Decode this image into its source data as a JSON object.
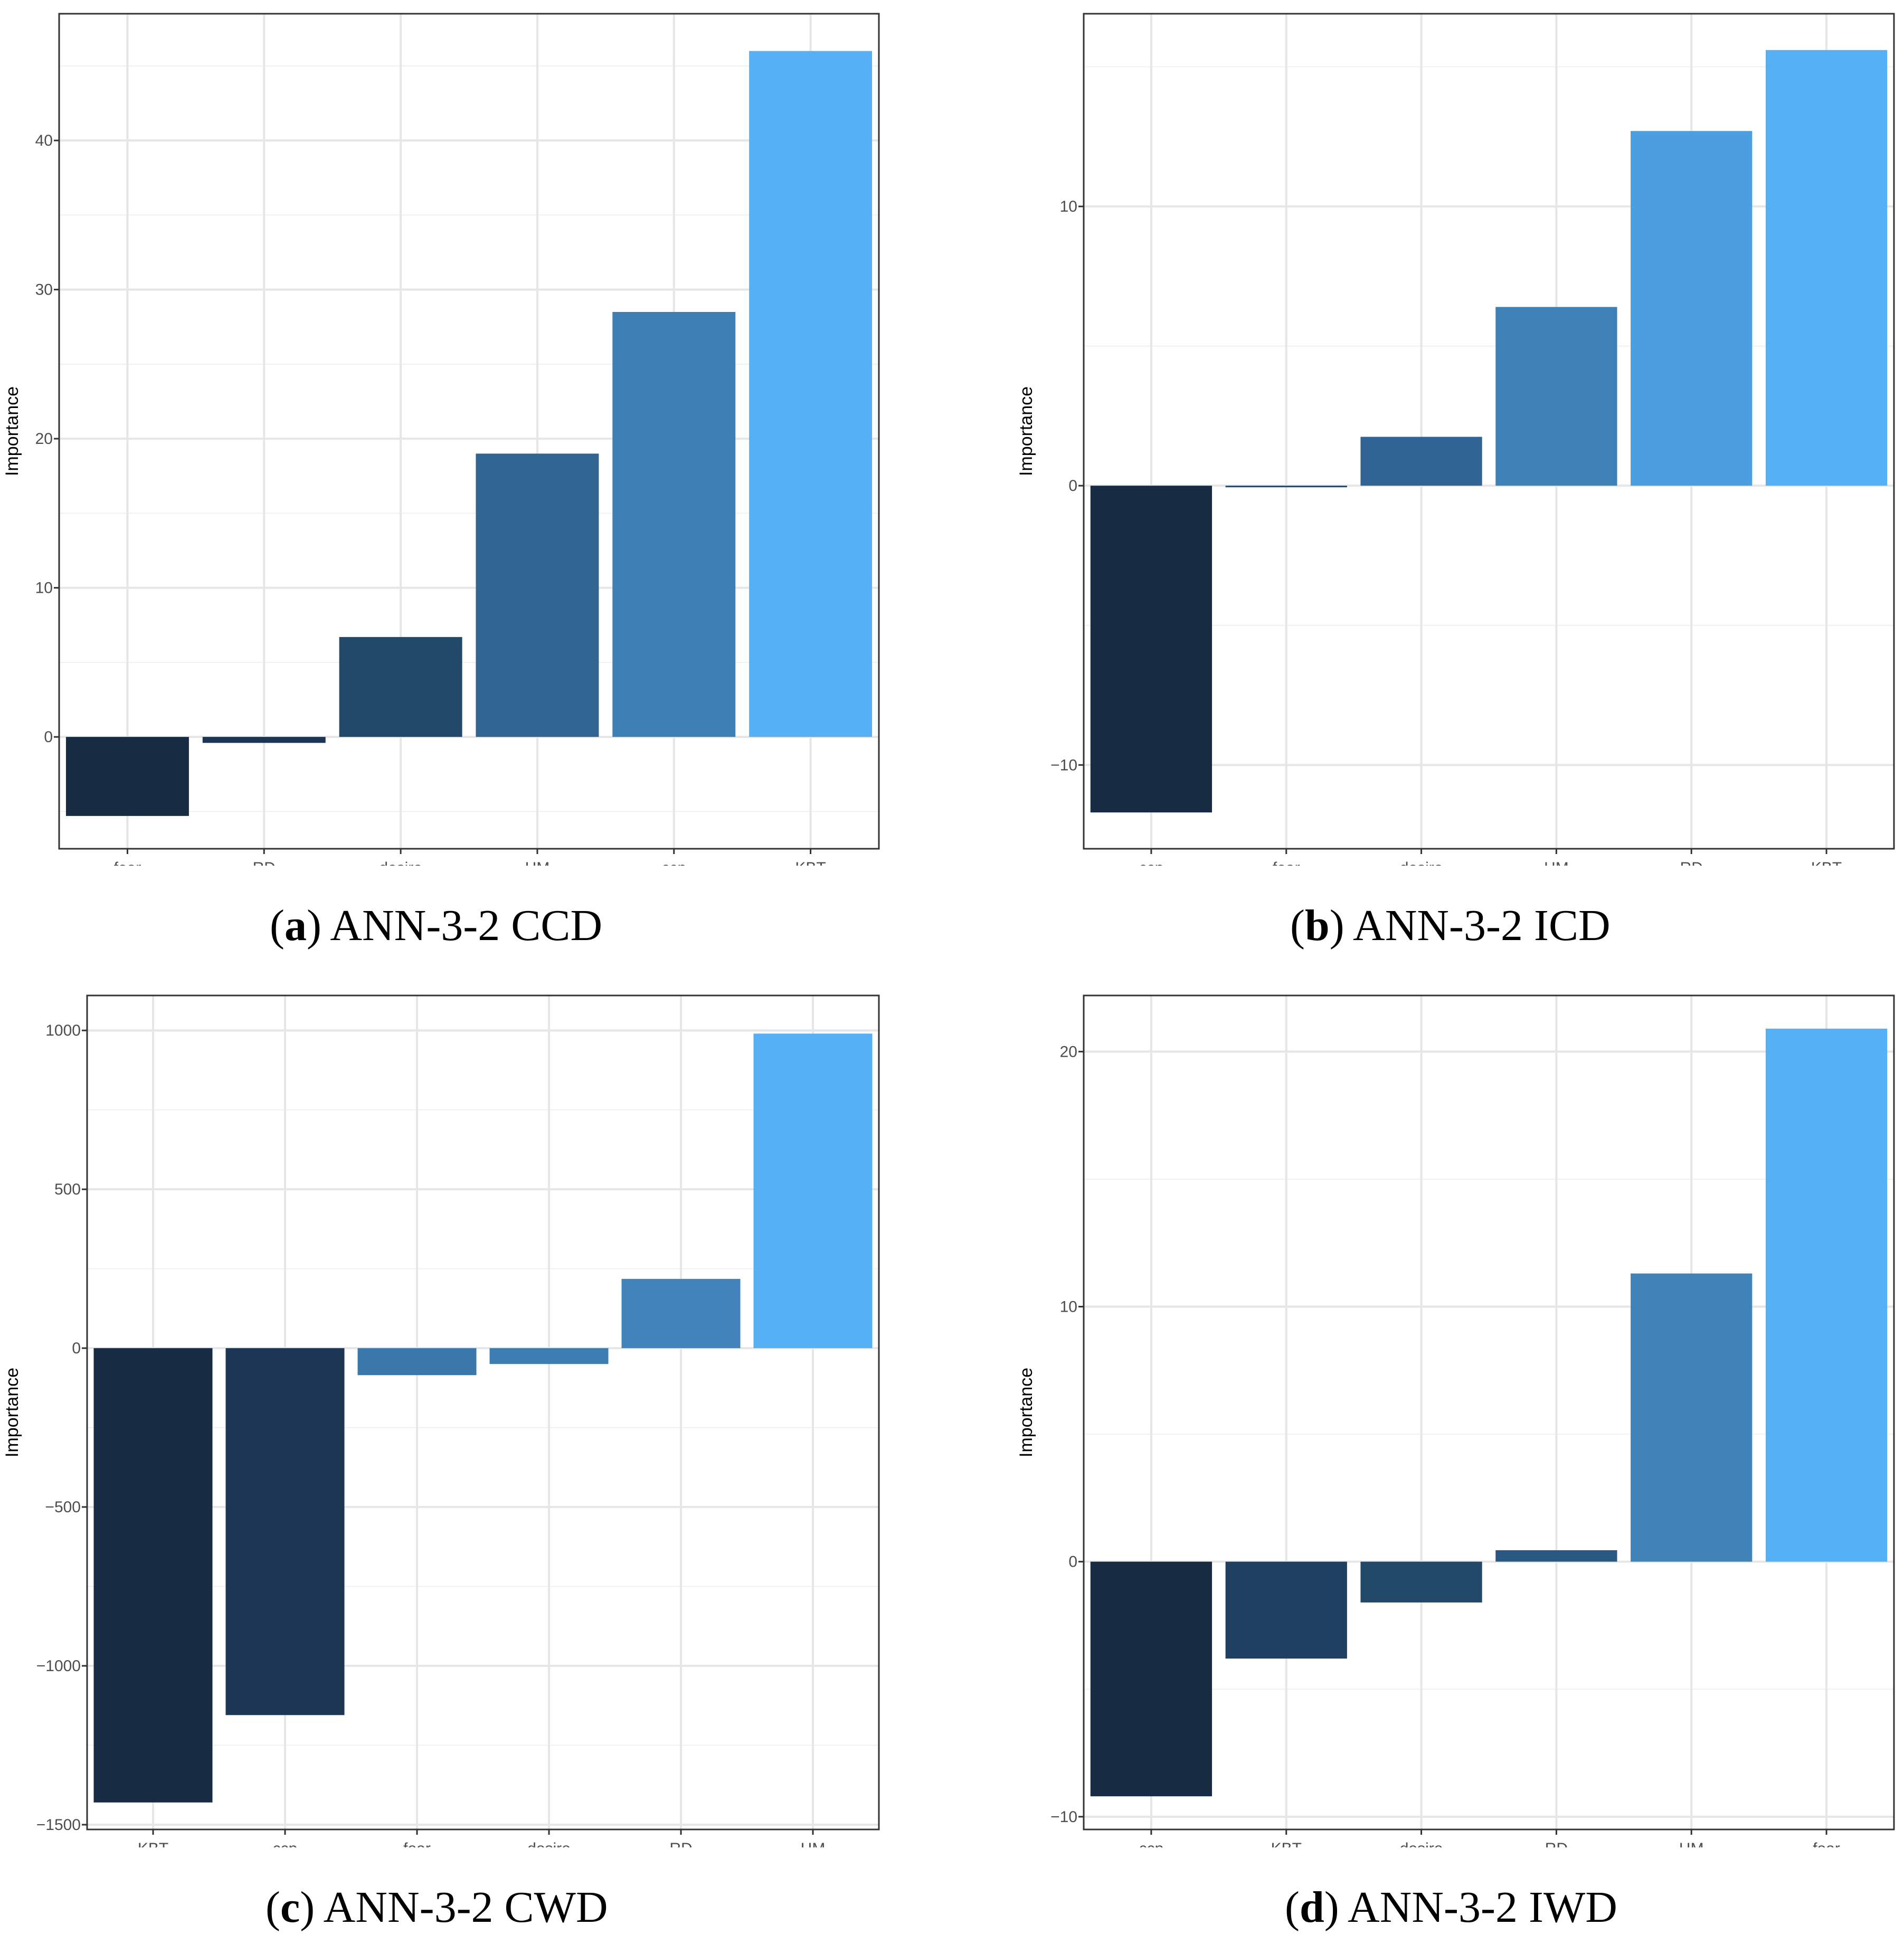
{
  "chart_data": [
    {
      "type": "bar",
      "id": "a",
      "caption_letter": "a",
      "caption_text": "ANN-3-2 CCD",
      "ylabel": "Importance",
      "categories": [
        "fear",
        "RD",
        "desire",
        "HM",
        "ccp",
        "KBT"
      ],
      "values": [
        -5.3,
        -0.4,
        6.7,
        19.0,
        28.5,
        46.0
      ],
      "ylim": [
        -7.5,
        48.5
      ],
      "yticks": [
        0,
        10,
        20,
        30,
        40
      ],
      "ytick_labels": [
        "0",
        "10",
        "20",
        "30",
        "40"
      ],
      "ymin_grid": [
        -5,
        5,
        15,
        25,
        35,
        45
      ],
      "colors": [
        "#172b43",
        "#1b3551",
        "#22486a",
        "#316592",
        "#3e7fb5",
        "#56b0f6"
      ]
    },
    {
      "type": "bar",
      "id": "b",
      "caption_letter": "b",
      "caption_text": "ANN-3-2 ICD",
      "ylabel": "Importance",
      "categories": [
        "ccp",
        "fear",
        "desire",
        "HM",
        "RD",
        "KBT"
      ],
      "values": [
        -11.7,
        -0.05,
        1.75,
        6.4,
        12.7,
        15.6
      ],
      "ylim": [
        -13.0,
        16.9
      ],
      "yticks": [
        -10,
        0,
        10
      ],
      "ytick_labels": [
        "−10",
        "0",
        "10"
      ],
      "ymin_grid": [
        -5,
        5,
        15
      ],
      "colors": [
        "#172b43",
        "#22486a",
        "#306494",
        "#3e81b7",
        "#4b9fe0",
        "#56b0f6"
      ]
    },
    {
      "type": "bar",
      "id": "c",
      "caption_letter": "c",
      "caption_text": "ANN-3-2 CWD",
      "ylabel": "Importance",
      "categories": [
        "KBT",
        "ccp",
        "fear",
        "desire",
        "RD",
        "HM"
      ],
      "values": [
        -1430,
        -1155,
        -85,
        -50,
        218,
        990
      ],
      "ylim": [
        -1515,
        1110
      ],
      "yticks": [
        -1500,
        -1000,
        -500,
        0,
        500,
        1000
      ],
      "ytick_labels": [
        "−1500",
        "−1000",
        "−500",
        "0",
        "500",
        "1000"
      ],
      "ymin_grid": [
        -1250,
        -750,
        -250,
        250,
        750
      ],
      "colors": [
        "#172b43",
        "#1c3654",
        "#3a78ac",
        "#3c7cb2",
        "#4183ba",
        "#56b0f6"
      ]
    },
    {
      "type": "bar",
      "id": "d",
      "caption_letter": "d",
      "caption_text": "ANN-3-2 IWD",
      "ylabel": "Importance",
      "categories": [
        "ccp",
        "KBT",
        "desire",
        "RD",
        "HM",
        "fear"
      ],
      "values": [
        -9.2,
        -3.8,
        -1.6,
        0.45,
        11.3,
        20.9
      ],
      "ylim": [
        -10.5,
        22.2
      ],
      "yticks": [
        -10,
        0,
        10,
        20
      ],
      "ytick_labels": [
        "−10",
        "0",
        "10",
        "20"
      ],
      "ymin_grid": [
        -5,
        5,
        15
      ],
      "colors": [
        "#172b43",
        "#1f4060",
        "#22486a",
        "#2b5883",
        "#4083b8",
        "#56b0f6"
      ]
    }
  ]
}
